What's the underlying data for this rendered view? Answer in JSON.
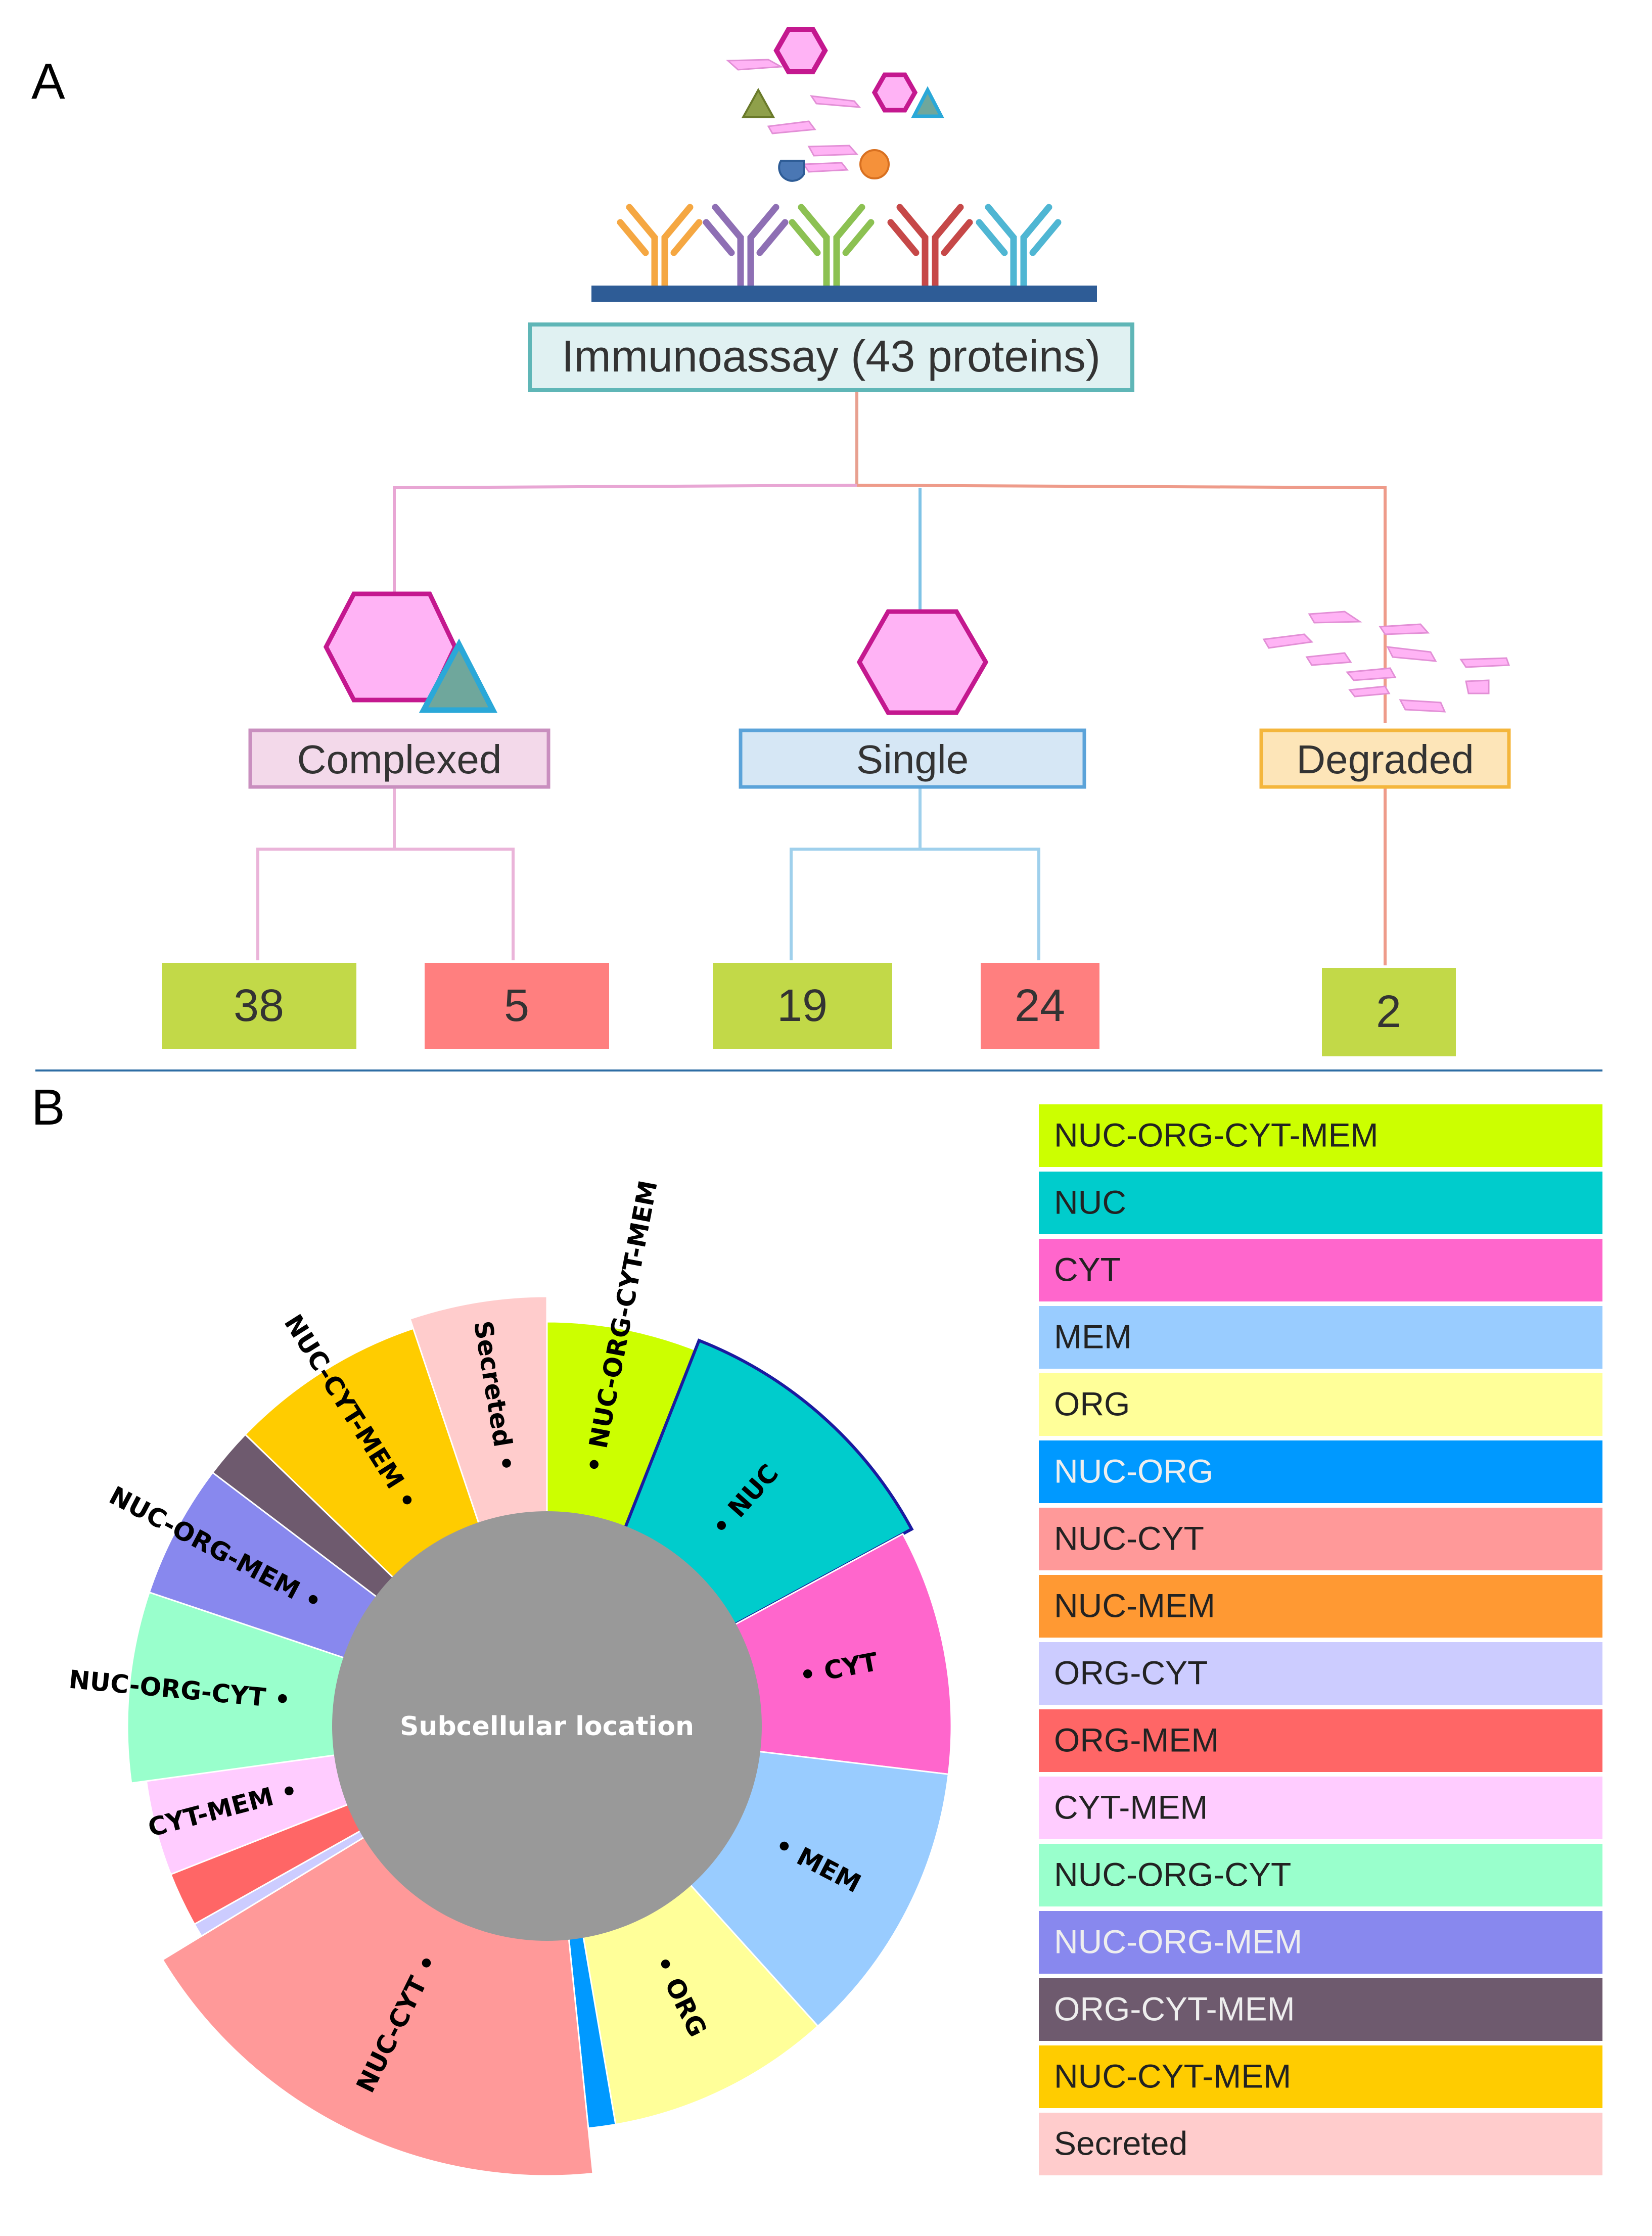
{
  "panel_a": {
    "letter": "A",
    "root_label": "Immunoassay (43 proteins)",
    "categories": [
      {
        "label": "Complexed",
        "counts": [
          "38",
          "5"
        ]
      },
      {
        "label": "Single",
        "counts": [
          "19",
          "24"
        ]
      },
      {
        "label": "Degraded",
        "counts": [
          "2"
        ]
      }
    ],
    "colors": {
      "green_box": "#c2d948",
      "red_box": "#ff7f7f",
      "complexed_fill": "#f3d9ea",
      "complexed_border": "#c98fbf",
      "single_fill": "#d6e7f5",
      "single_border": "#5ba3d9",
      "degraded_fill": "#fde5b8",
      "degraded_border": "#f4b63c",
      "root_fill": "#e0f1f2",
      "root_border": "#5fb6b7",
      "hexagon_fill": "#ffb3f5",
      "hexagon_border": "#c4188f",
      "triangle_fill": "#6fa79c",
      "triangle_border": "#2aa8d8",
      "plate": "#2e5c96"
    },
    "antibody_colors": [
      "#f5a742",
      "#8e6fb4",
      "#8cc152",
      "#c64848",
      "#4fb6d3"
    ],
    "icons": [
      "hexagon-icon",
      "triangle-icon",
      "antibody-icon",
      "fragment-icon",
      "droplet-icon",
      "circle-icon"
    ]
  },
  "panel_b": {
    "letter": "B",
    "center_label": "Subcellular location"
  },
  "chart_data": {
    "type": "pie",
    "title": "Subcellular location",
    "style": "donut",
    "unit": "degrees of arc (estimated)",
    "slices": [
      {
        "name": "NUC-ORG-CYT-MEM",
        "value": 22,
        "color": "#ccff00",
        "label": "NUC-ORG-CYT-MEM",
        "highlighted": false
      },
      {
        "name": "NUC",
        "value": 41,
        "color": "#00cccc",
        "label": "NUC",
        "highlighted": true
      },
      {
        "name": "CYT",
        "value": 36,
        "color": "#ff66cc",
        "label": "CYT",
        "highlighted": false
      },
      {
        "name": "MEM",
        "value": 42,
        "color": "#99ccff",
        "label": "MEM",
        "highlighted": false
      },
      {
        "name": "ORG",
        "value": 33,
        "color": "#ffff99",
        "label": "ORG",
        "highlighted": false
      },
      {
        "name": "NUC-ORG",
        "value": 4,
        "color": "#0099ff",
        "label": "",
        "highlighted": false
      },
      {
        "name": "NUC-CYT",
        "value": 66,
        "color": "#ff9999",
        "label": "NUC-CYT",
        "highlighted": false
      },
      {
        "name": "ORG-CYT",
        "value": 2,
        "color": "#ccccff",
        "label": "",
        "highlighted": false
      },
      {
        "name": "ORG-MEM",
        "value": 8,
        "color": "#ff6666",
        "label": "",
        "highlighted": false
      },
      {
        "name": "CYT-MEM",
        "value": 14,
        "color": "#ffccff",
        "label": "CYT-MEM",
        "highlighted": false
      },
      {
        "name": "NUC-ORG-CYT",
        "value": 27,
        "color": "#99ffcc",
        "label": "NUC-ORG-CYT",
        "highlighted": false
      },
      {
        "name": "NUC-ORG-MEM",
        "value": 19,
        "color": "#8888ee",
        "label": "NUC-ORG-MEM",
        "highlighted": false
      },
      {
        "name": "ORG-CYT-MEM",
        "value": 7,
        "color": "#6e5a6e",
        "label": "",
        "highlighted": false
      },
      {
        "name": "NUC-CYT-MEM",
        "value": 28,
        "color": "#ffcc00",
        "label": "NUC-CYT-MEM",
        "highlighted": false
      },
      {
        "name": "Secreted",
        "value": 19,
        "color": "#ffcccc",
        "label": "Secreted",
        "highlighted": false
      }
    ],
    "legend": [
      {
        "label": "NUC-ORG-CYT-MEM",
        "color": "#ccff00"
      },
      {
        "label": "NUC",
        "color": "#00cccc"
      },
      {
        "label": "CYT",
        "color": "#ff66cc"
      },
      {
        "label": "MEM",
        "color": "#99ccff"
      },
      {
        "label": "ORG",
        "color": "#ffff99"
      },
      {
        "label": "NUC-ORG",
        "color": "#0099ff"
      },
      {
        "label": "NUC-CYT",
        "color": "#ff9999"
      },
      {
        "label": "NUC-MEM",
        "color": "#ff9933"
      },
      {
        "label": "ORG-CYT",
        "color": "#ccccff"
      },
      {
        "label": "ORG-MEM",
        "color": "#ff6666"
      },
      {
        "label": "CYT-MEM",
        "color": "#ffccff"
      },
      {
        "label": "NUC-ORG-CYT",
        "color": "#99ffcc"
      },
      {
        "label": "NUC-ORG-MEM",
        "color": "#8888ee"
      },
      {
        "label": "ORG-CYT-MEM",
        "color": "#6e5a6e"
      },
      {
        "label": "NUC-CYT-MEM",
        "color": "#ffcc00"
      },
      {
        "label": "Secreted",
        "color": "#ffcccc"
      }
    ],
    "legend_position": "right"
  }
}
